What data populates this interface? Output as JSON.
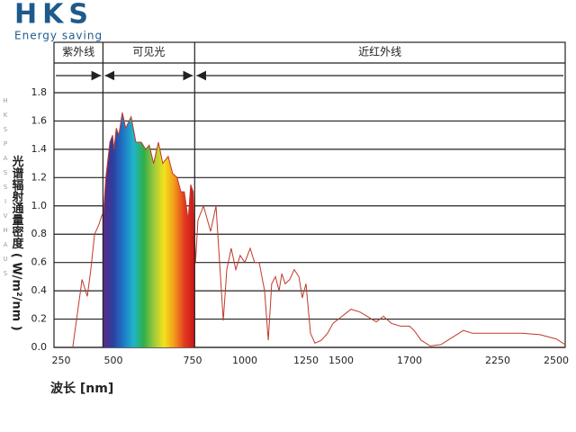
{
  "brand": {
    "name": "HKS",
    "tagline": "Energy saving",
    "side": [
      "H",
      "K",
      "S",
      "P",
      "A",
      "S",
      "S",
      "I",
      "V",
      "H",
      "A",
      "U",
      "S"
    ]
  },
  "chart_data": {
    "type": "line",
    "xlabel": "波长 [nm]",
    "ylabel": "光谱辐射通量密度 ( W/m²/nm )",
    "x": [
      305,
      350,
      375,
      392,
      410,
      431,
      444,
      452,
      464,
      483,
      496,
      502,
      509,
      517,
      528,
      539,
      556,
      571,
      588,
      602,
      613,
      627,
      642,
      656,
      673,
      687,
      701,
      713,
      724,
      736,
      744,
      753,
      764,
      776,
      802,
      836,
      862,
      897,
      914,
      935,
      957,
      978,
      1000,
      1022,
      1040,
      1059,
      1081,
      1096,
      1110,
      1125,
      1140,
      1151,
      1165,
      1184,
      1202,
      1221,
      1235,
      1250,
      1282,
      1314,
      1359,
      1404,
      1442,
      1503,
      1529,
      1555,
      1576,
      1603,
      1624,
      1647,
      1674,
      1700,
      1728,
      1773,
      1829,
      1896,
      1952,
      2008,
      2036,
      2092,
      2250,
      2354,
      2431,
      2500,
      2540
    ],
    "values": [
      0,
      0.48,
      0.36,
      0.55,
      0.8,
      0.87,
      0.93,
      0.95,
      1.2,
      1.45,
      1.5,
      1.4,
      1.55,
      1.5,
      1.66,
      1.55,
      1.63,
      1.45,
      1.45,
      1.4,
      1.43,
      1.3,
      1.45,
      1.3,
      1.35,
      1.23,
      1.2,
      1.1,
      1.1,
      0.9,
      1.15,
      1.1,
      0.6,
      0.9,
      1.0,
      0.82,
      1.0,
      0.19,
      0.55,
      0.7,
      0.55,
      0.65,
      0.6,
      0.7,
      0.6,
      0.6,
      0.4,
      0.05,
      0.45,
      0.5,
      0.4,
      0.52,
      0.45,
      0.48,
      0.55,
      0.5,
      0.35,
      0.45,
      0.1,
      0.03,
      0.05,
      0.1,
      0.17,
      0.22,
      0.27,
      0.25,
      0.22,
      0.18,
      0.22,
      0.17,
      0.15,
      0.15,
      0.12,
      0.05,
      0.01,
      0.02,
      0.06,
      0.1,
      0.12,
      0.1,
      0.1,
      0.1,
      0.09,
      0.06,
      0.02
    ],
    "color": "#c0392b",
    "gradient": [
      "#5b2a86",
      "#2c3e9f",
      "#1f77c8",
      "#1fb5c9",
      "#2fae4a",
      "#9cc93b",
      "#f3e21b",
      "#f39a1b",
      "#e23a1f",
      "#c9141b"
    ],
    "bands": [
      {
        "label": "紫外线",
        "from": 215,
        "to": 450
      },
      {
        "label": "可见光",
        "from": 450,
        "to": 760
      },
      {
        "label": "近红外线",
        "from": 760,
        "to": 2540
      }
    ],
    "xlim": [
      215,
      2540
    ],
    "ylim": [
      0,
      1.8
    ],
    "xticks": [
      250,
      500,
      750,
      1000,
      1250,
      1500,
      1700,
      2250,
      2500
    ],
    "yticks": [
      {
        "value": 0,
        "label": "0.0"
      },
      0.2,
      0.4,
      0.6,
      0.8,
      {
        "value": 1,
        "label": "1.0"
      },
      1.2,
      1.4,
      1.6,
      1.8
    ],
    "grid": true
  }
}
